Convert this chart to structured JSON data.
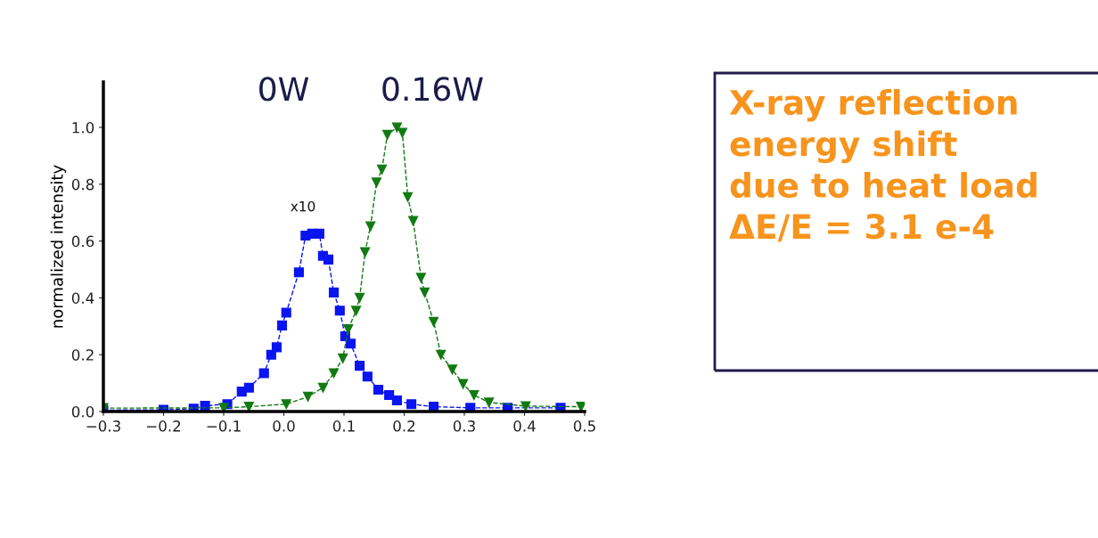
{
  "chart_data": {
    "type": "line",
    "ylabel": "normalized intensity",
    "xlim": [
      -0.3,
      0.5
    ],
    "xticks": [
      {
        "value": -0.3,
        "label": "−0.3"
      },
      {
        "value": -0.2,
        "label": "−0.2"
      },
      {
        "value": -0.1,
        "label": "−0.1"
      },
      {
        "value": 0.0,
        "label": "0.0"
      },
      0.1,
      0.2,
      0.3,
      0.4,
      0.5
    ],
    "ylim": [
      0,
      1.16
    ],
    "yticks": [
      {
        "value": 0.0,
        "label": "0.0"
      },
      0.2,
      0.4,
      0.6,
      0.8,
      {
        "value": 1.0,
        "label": "1.0"
      }
    ],
    "grid": false,
    "line_style": "dashed",
    "series": [
      {
        "color": "#0a14f0",
        "marker": "square",
        "x": [
          -0.3,
          -0.2,
          -0.15,
          -0.131,
          -0.094,
          -0.07,
          -0.058,
          -0.033,
          -0.021,
          -0.012,
          -0.003,
          0.004,
          0.025,
          0.036,
          0.047,
          0.059,
          0.065,
          0.074,
          0.083,
          0.093,
          0.102,
          0.111,
          0.126,
          0.139,
          0.157,
          0.175,
          0.188,
          0.212,
          0.249,
          0.31,
          0.372,
          0.46
        ],
        "values": [
          0.005,
          0.006,
          0.01,
          0.02,
          0.026,
          0.07,
          0.084,
          0.135,
          0.2,
          0.226,
          0.303,
          0.348,
          0.49,
          0.619,
          0.626,
          0.626,
          0.548,
          0.535,
          0.419,
          0.355,
          0.265,
          0.239,
          0.161,
          0.123,
          0.077,
          0.058,
          0.039,
          0.026,
          0.017,
          0.013,
          0.013,
          0.013
        ]
      },
      {
        "color": "#127a12",
        "marker": "triangle",
        "x": [
          -0.3,
          -0.1,
          -0.058,
          0.004,
          0.04,
          0.065,
          0.083,
          0.098,
          0.107,
          0.12,
          0.126,
          0.135,
          0.144,
          0.154,
          0.163,
          0.172,
          0.188,
          0.197,
          0.206,
          0.215,
          0.228,
          0.234,
          0.249,
          0.261,
          0.28,
          0.298,
          0.316,
          0.341,
          0.402,
          0.494
        ],
        "values": [
          0.012,
          0.013,
          0.017,
          0.026,
          0.052,
          0.084,
          0.135,
          0.187,
          0.29,
          0.355,
          0.4,
          0.561,
          0.652,
          0.806,
          0.852,
          0.974,
          1.0,
          0.981,
          0.755,
          0.671,
          0.471,
          0.419,
          0.316,
          0.2,
          0.148,
          0.097,
          0.058,
          0.032,
          0.019,
          0.017
        ]
      }
    ],
    "annotations": [
      "0W",
      "0.16W",
      "x10",
      "X-ray reflection\nenergy shift\ndue to heat load\nΔE/E = 3.1 e-4"
    ]
  }
}
